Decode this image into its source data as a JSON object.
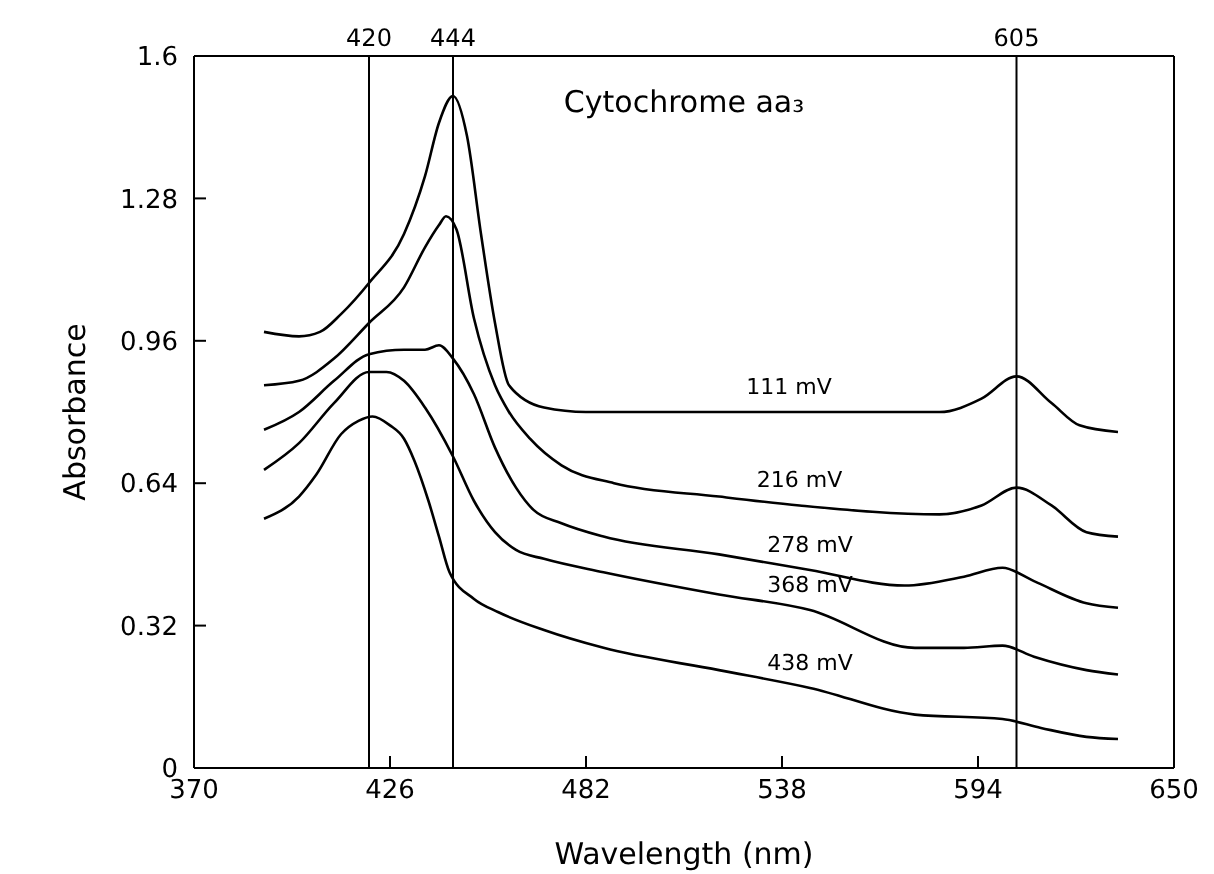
{
  "chart_data": {
    "type": "line",
    "title": "Cytochrome aa₃",
    "xlabel": "Wavelength (nm)",
    "ylabel": "Absorbance",
    "xlim": [
      370,
      650
    ],
    "xticks": [
      370,
      426,
      482,
      538,
      594,
      650
    ],
    "ylim": [
      0,
      1.6
    ],
    "yticks": [
      0,
      0.32,
      0.64,
      0.96,
      1.28,
      1.6
    ],
    "grid": false,
    "legend": false,
    "marker": "none",
    "line_style": "solid",
    "series": [
      {
        "name": "111 mV",
        "color": "#000000",
        "x": [
          390,
          400,
          406,
          412,
          420,
          430,
          436,
          440,
          444,
          448,
          452,
          456,
          460,
          470,
          482,
          500,
          540,
          583,
          595,
          605,
          615,
          623,
          634
        ],
        "values": [
          0.98,
          0.97,
          0.98,
          1.02,
          1.09,
          1.2,
          1.33,
          1.45,
          1.51,
          1.42,
          1.2,
          1.0,
          0.86,
          0.81,
          0.8,
          0.8,
          0.8,
          0.8,
          0.83,
          0.88,
          0.82,
          0.77,
          0.755
        ]
      },
      {
        "name": "216 mV",
        "color": "#000000",
        "x": [
          390,
          400,
          410,
          420,
          430,
          436,
          440,
          442,
          445,
          450,
          456,
          460,
          466,
          475,
          490,
          520,
          543,
          583,
          595,
          605,
          615,
          625,
          634
        ],
        "values": [
          0.86,
          0.87,
          0.92,
          1.0,
          1.08,
          1.17,
          1.22,
          1.24,
          1.21,
          1.01,
          0.86,
          0.8,
          0.74,
          0.68,
          0.64,
          0.61,
          0.59,
          0.57,
          0.59,
          0.63,
          0.59,
          0.53,
          0.52
        ]
      },
      {
        "name": "278 mV",
        "color": "#000000",
        "x": [
          390,
          400,
          410,
          420,
          430,
          436,
          440,
          444,
          450,
          456,
          462,
          467,
          475,
          487,
          520,
          546,
          573,
          590,
          601,
          610,
          625,
          634
        ],
        "values": [
          0.76,
          0.8,
          0.87,
          0.93,
          0.94,
          0.94,
          0.95,
          0.92,
          0.84,
          0.72,
          0.63,
          0.58,
          0.55,
          0.52,
          0.48,
          0.445,
          0.41,
          0.43,
          0.45,
          0.42,
          0.37,
          0.36
        ]
      },
      {
        "name": "368 mV",
        "color": "#000000",
        "x": [
          390,
          400,
          410,
          420,
          425,
          430,
          436,
          444,
          450,
          456,
          462,
          470,
          487,
          520,
          546,
          576,
          590,
          601,
          610,
          625,
          634
        ],
        "values": [
          0.67,
          0.73,
          0.82,
          0.89,
          0.89,
          0.87,
          0.81,
          0.7,
          0.6,
          0.53,
          0.49,
          0.47,
          0.44,
          0.39,
          0.355,
          0.27,
          0.27,
          0.275,
          0.25,
          0.22,
          0.21
        ]
      },
      {
        "name": "438 mV",
        "color": "#000000",
        "x": [
          390,
          400,
          405,
          412,
          417,
          421,
          426,
          430,
          433,
          437,
          440,
          443,
          450,
          457,
          470,
          487,
          520,
          546,
          576,
          601,
          612,
          625,
          634
        ],
        "values": [
          0.56,
          0.61,
          0.66,
          0.75,
          0.78,
          0.79,
          0.77,
          0.74,
          0.69,
          0.6,
          0.52,
          0.44,
          0.38,
          0.35,
          0.31,
          0.27,
          0.22,
          0.18,
          0.12,
          0.11,
          0.09,
          0.07,
          0.065
        ]
      }
    ],
    "ref_lines": [
      {
        "axis": "x",
        "value": 420,
        "label": "420",
        "color": "#000000"
      },
      {
        "axis": "x",
        "value": 444,
        "label": "444",
        "color": "#000000"
      },
      {
        "axis": "x",
        "value": 605,
        "label": "605",
        "color": "#000000"
      }
    ]
  }
}
